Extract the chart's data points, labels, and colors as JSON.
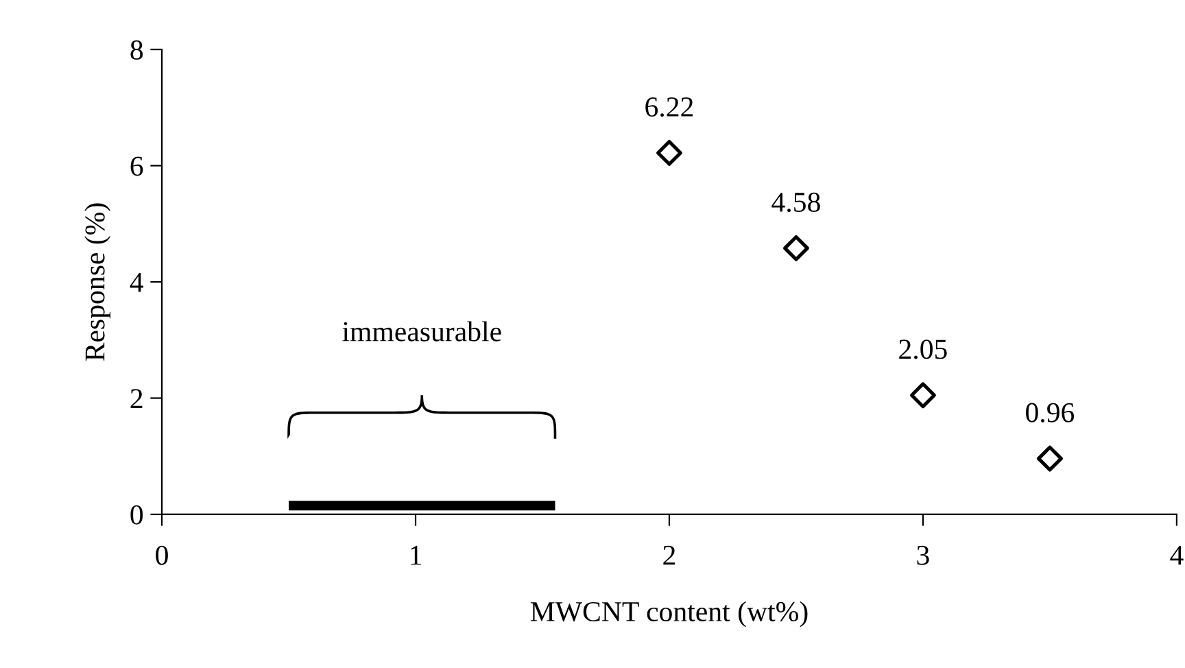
{
  "chart_data": {
    "type": "scatter",
    "xlabel": "MWCNT content (wt%)",
    "ylabel": "Response (%)",
    "xlim": [
      0,
      4
    ],
    "ylim": [
      0,
      8
    ],
    "xticks": [
      0,
      1,
      2,
      3,
      4
    ],
    "yticks": [
      0,
      2,
      4,
      6,
      8
    ],
    "grid": false,
    "legend": false,
    "series": [
      {
        "color": "#000000",
        "marker": "diamond",
        "x": [
          2,
          2.5,
          3,
          3.5
        ],
        "values": [
          6.22,
          4.58,
          2.05,
          0.96
        ],
        "value_labels": [
          "6.22",
          "4.58",
          "2.05",
          "0.96"
        ]
      },
      {
        "type": "line",
        "color": "#000000",
        "marker": "none",
        "x": [
          0.5,
          1.55
        ],
        "values": [
          0.15,
          0.15
        ]
      }
    ],
    "annotations": [
      "immeasurable"
    ]
  }
}
